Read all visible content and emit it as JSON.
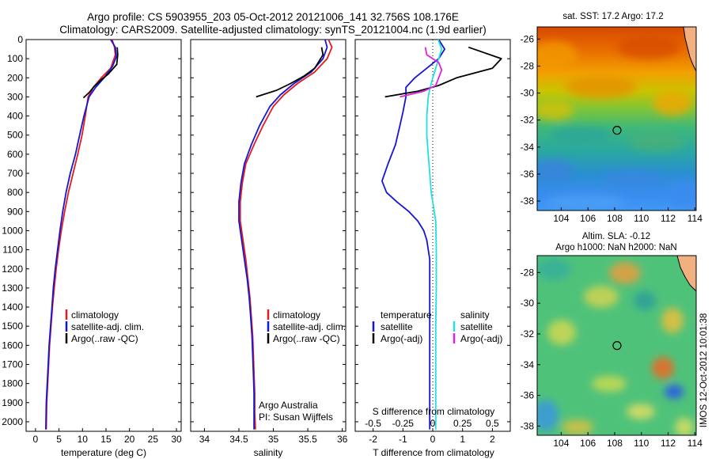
{
  "header": {
    "title_line1": "Argo profile: CS 5903955_203 05-Oct-2012 20121006_141 32.756S 108.176E",
    "title_line2": "Climatology: CARS2009. Satellite-adjusted climatology: synTS_20121004.nc (1.9d earlier)"
  },
  "side_stamp": "IMOS 12-Oct-2012 10:01:38",
  "colors": {
    "climatology": "#e41a1c",
    "satellite": "#1515d6",
    "argo": "#000000",
    "salinity_sat": "#22e0e0",
    "salinity_argo": "#e020e0"
  },
  "chart_data": [
    {
      "type": "line",
      "name": "temperature-profile",
      "xlabel": "temperature (deg C)",
      "xlim": [
        -2,
        31
      ],
      "ylim": [
        2050,
        0
      ],
      "xticks": [
        0,
        5,
        10,
        15,
        20,
        25,
        30
      ],
      "yticks": [
        0,
        100,
        200,
        300,
        400,
        500,
        600,
        700,
        800,
        900,
        1000,
        1100,
        1200,
        1300,
        1400,
        1500,
        1600,
        1700,
        1800,
        1900,
        2000
      ],
      "legend": [
        "climatology",
        "satellite-adj. clim.",
        "Argo(..raw -QC)"
      ],
      "legend_position": "lower-center",
      "series": [
        {
          "name": "climatology",
          "color": "#e41a1c",
          "points": [
            [
              16.3,
              0
            ],
            [
              16.8,
              40
            ],
            [
              17.0,
              80
            ],
            [
              16.0,
              150
            ],
            [
              14.0,
              200
            ],
            [
              12.3,
              250
            ],
            [
              11.2,
              300
            ],
            [
              10.6,
              400
            ],
            [
              9.9,
              500
            ],
            [
              9.0,
              600
            ],
            [
              8.0,
              700
            ],
            [
              7.0,
              800
            ],
            [
              6.2,
              900
            ],
            [
              5.5,
              1000
            ],
            [
              4.9,
              1100
            ],
            [
              4.4,
              1200
            ],
            [
              4.0,
              1300
            ],
            [
              3.6,
              1400
            ],
            [
              3.3,
              1500
            ],
            [
              3.0,
              1600
            ],
            [
              2.8,
              1700
            ],
            [
              2.6,
              1800
            ],
            [
              2.4,
              1900
            ],
            [
              2.3,
              2040
            ]
          ]
        },
        {
          "name": "satellite-adj. clim.",
          "color": "#1515d6",
          "points": [
            [
              16.0,
              0
            ],
            [
              17.0,
              40
            ],
            [
              17.2,
              90
            ],
            [
              16.4,
              140
            ],
            [
              14.6,
              200
            ],
            [
              12.8,
              250
            ],
            [
              11.4,
              300
            ],
            [
              10.3,
              400
            ],
            [
              9.4,
              500
            ],
            [
              8.5,
              600
            ],
            [
              7.4,
              700
            ],
            [
              6.5,
              800
            ],
            [
              5.8,
              900
            ],
            [
              5.2,
              1000
            ],
            [
              4.7,
              1100
            ],
            [
              4.2,
              1200
            ],
            [
              3.8,
              1300
            ],
            [
              3.5,
              1400
            ],
            [
              3.2,
              1500
            ],
            [
              2.9,
              1600
            ],
            [
              2.7,
              1700
            ],
            [
              2.5,
              1800
            ],
            [
              2.3,
              1900
            ],
            [
              2.2,
              2040
            ]
          ]
        },
        {
          "name": "Argo(..raw -QC)",
          "color": "#000000",
          "points": [
            [
              17.4,
              40
            ],
            [
              17.5,
              80
            ],
            [
              17.3,
              130
            ],
            [
              15.5,
              180
            ],
            [
              14.0,
              210
            ],
            [
              12.5,
              245
            ],
            [
              11.5,
              275
            ],
            [
              10.2,
              305
            ]
          ]
        }
      ]
    },
    {
      "type": "line",
      "name": "salinity-profile",
      "xlabel": "salinity",
      "xlim": [
        33.8,
        36.05
      ],
      "ylim": [
        2050,
        0
      ],
      "xticks": [
        34,
        34.5,
        35,
        35.5,
        36
      ],
      "legend": [
        "climatology",
        "satellite-adj. clim.",
        "Argo(..raw -QC)"
      ],
      "legend_position": "lower-center",
      "annotation": [
        "Argo Australia",
        "PI: Susan Wijffels"
      ],
      "series": [
        {
          "name": "climatology",
          "color": "#e41a1c",
          "points": [
            [
              35.8,
              0
            ],
            [
              35.85,
              40
            ],
            [
              35.78,
              100
            ],
            [
              35.6,
              170
            ],
            [
              35.35,
              230
            ],
            [
              35.15,
              290
            ],
            [
              35.0,
              350
            ],
            [
              34.85,
              450
            ],
            [
              34.72,
              550
            ],
            [
              34.6,
              650
            ],
            [
              34.55,
              750
            ],
            [
              34.52,
              850
            ],
            [
              34.52,
              950
            ],
            [
              34.56,
              1050
            ],
            [
              34.6,
              1150
            ],
            [
              34.63,
              1250
            ],
            [
              34.66,
              1350
            ],
            [
              34.68,
              1450
            ],
            [
              34.7,
              1550
            ],
            [
              34.71,
              1650
            ],
            [
              34.72,
              1750
            ],
            [
              34.73,
              1850
            ],
            [
              34.73,
              1950
            ],
            [
              34.74,
              2040
            ]
          ]
        },
        {
          "name": "satellite-adj. clim.",
          "color": "#1515d6",
          "points": [
            [
              35.75,
              0
            ],
            [
              35.78,
              40
            ],
            [
              35.72,
              100
            ],
            [
              35.55,
              170
            ],
            [
              35.3,
              230
            ],
            [
              35.1,
              290
            ],
            [
              34.95,
              350
            ],
            [
              34.8,
              450
            ],
            [
              34.68,
              550
            ],
            [
              34.58,
              650
            ],
            [
              34.53,
              750
            ],
            [
              34.5,
              850
            ],
            [
              34.5,
              950
            ],
            [
              34.54,
              1050
            ],
            [
              34.58,
              1150
            ],
            [
              34.62,
              1250
            ],
            [
              34.65,
              1350
            ],
            [
              34.67,
              1450
            ],
            [
              34.69,
              1550
            ],
            [
              34.7,
              1650
            ],
            [
              34.71,
              1750
            ],
            [
              34.72,
              1850
            ],
            [
              34.72,
              1950
            ],
            [
              34.72,
              2040
            ]
          ]
        },
        {
          "name": "Argo(..raw -QC)",
          "color": "#000000",
          "points": [
            [
              35.7,
              40
            ],
            [
              35.72,
              80
            ],
            [
              35.6,
              150
            ],
            [
              35.45,
              190
            ],
            [
              35.25,
              230
            ],
            [
              35.05,
              265
            ],
            [
              34.75,
              300
            ]
          ]
        }
      ]
    },
    {
      "type": "line",
      "name": "difference-profile",
      "xlabel": "T difference from climatology",
      "xlabel2": "S difference from climatology",
      "xlim": [
        -2.6,
        2.6
      ],
      "ylim": [
        2050,
        0
      ],
      "xticks": [
        -2,
        -1,
        0,
        1,
        2
      ],
      "xticks2": [
        -0.5,
        -0.25,
        0,
        0.25,
        0.5
      ],
      "xticks2_labels": [
        "-0.5",
        "-0.25",
        "0",
        "0.25",
        "0.5"
      ],
      "legend_left_title": "temperature",
      "legend_right_title": "salinity",
      "legend_left": [
        "satellite",
        "Argo(-adj)"
      ],
      "legend_right": [
        "satellite",
        "Argo(-adj)"
      ],
      "series": [
        {
          "name": "T satellite",
          "color": "#1515d6",
          "points": [
            [
              0.2,
              0
            ],
            [
              0.4,
              50
            ],
            [
              0.2,
              100
            ],
            [
              -0.2,
              150
            ],
            [
              -0.6,
              200
            ],
            [
              -0.9,
              250
            ],
            [
              -0.9,
              300
            ],
            [
              -1.0,
              380
            ],
            [
              -1.1,
              450
            ],
            [
              -1.25,
              550
            ],
            [
              -1.5,
              650
            ],
            [
              -1.7,
              740
            ],
            [
              -1.55,
              800
            ],
            [
              -1.2,
              850
            ],
            [
              -0.8,
              900
            ],
            [
              -0.5,
              950
            ],
            [
              -0.3,
              1000
            ],
            [
              -0.2,
              1050
            ],
            [
              -0.1,
              1150
            ],
            [
              -0.1,
              1300
            ],
            [
              -0.1,
              1500
            ],
            [
              -0.1,
              1700
            ],
            [
              -0.1,
              1900
            ],
            [
              -0.1,
              2040
            ]
          ]
        },
        {
          "name": "T Argo(-adj)",
          "color": "#000000",
          "points": [
            [
              1.2,
              40
            ],
            [
              2.3,
              100
            ],
            [
              2.0,
              150
            ],
            [
              0.8,
              200
            ],
            [
              0.2,
              240
            ],
            [
              -0.5,
              270
            ],
            [
              -1.6,
              300
            ]
          ]
        },
        {
          "name": "S satellite",
          "color": "#22e0e0",
          "points": [
            [
              0.18,
              0
            ],
            [
              0.3,
              50
            ],
            [
              0.2,
              100
            ],
            [
              0.1,
              150
            ],
            [
              0.0,
              200
            ],
            [
              -0.1,
              260
            ],
            [
              -0.15,
              300
            ],
            [
              -0.2,
              400
            ],
            [
              -0.2,
              500
            ],
            [
              -0.15,
              600
            ],
            [
              -0.1,
              700
            ],
            [
              -0.05,
              800
            ],
            [
              0.0,
              850
            ],
            [
              0.1,
              950
            ],
            [
              0.12,
              1100
            ],
            [
              0.12,
              1300
            ],
            [
              0.1,
              1500
            ],
            [
              0.1,
              1700
            ],
            [
              0.1,
              1900
            ],
            [
              0.1,
              2040
            ]
          ]
        },
        {
          "name": "S Argo(-adj)",
          "color": "#e020e0",
          "points": [
            [
              -0.25,
              40
            ],
            [
              -0.2,
              80
            ],
            [
              0.2,
              120
            ],
            [
              0.3,
              160
            ],
            [
              0.2,
              200
            ],
            [
              0.1,
              240
            ],
            [
              -0.3,
              270
            ],
            [
              -1.1,
              300
            ]
          ]
        }
      ]
    },
    {
      "type": "heatmap",
      "name": "sst-map",
      "title": "sat. SST: 17.2  Argo: 17.2",
      "xticks": [
        104,
        106,
        108,
        110,
        112,
        114
      ],
      "yticks": [
        -26,
        -28,
        -30,
        -32,
        -34,
        -36,
        -38
      ],
      "xlim": [
        102.2,
        114.1
      ],
      "ylim": [
        -38.7,
        -25.1
      ],
      "argo_position": [
        108.176,
        -32.756
      ]
    },
    {
      "type": "heatmap",
      "name": "sla-map",
      "title": "Altim. SLA: -0.12",
      "subtitle": "Argo h1000: NaN h2000: NaN",
      "xticks": [
        104,
        106,
        108,
        110,
        112,
        114
      ],
      "yticks": [
        -28,
        -30,
        -32,
        -34,
        -36,
        -38
      ],
      "xlim": [
        102.2,
        114.1
      ],
      "ylim": [
        -38.6,
        -26.9
      ],
      "argo_position": [
        108.176,
        -32.756
      ]
    }
  ]
}
